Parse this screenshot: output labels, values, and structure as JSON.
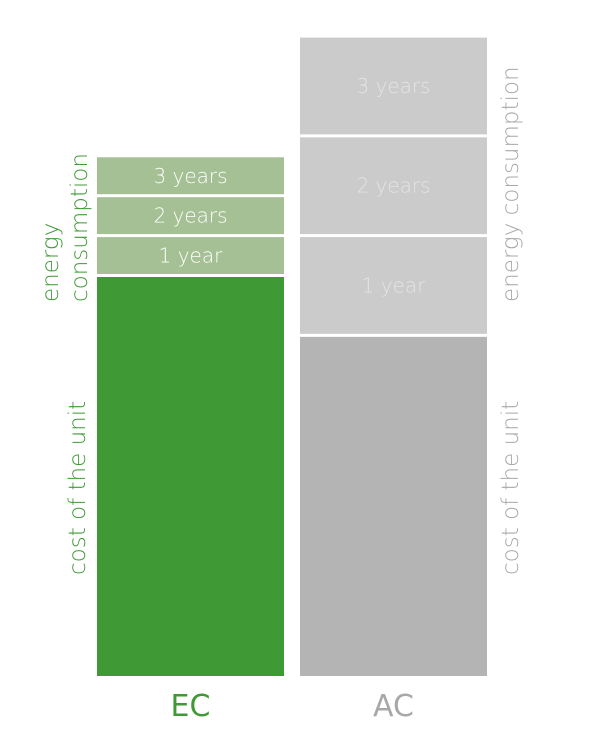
{
  "chart_data": {
    "type": "bar",
    "stacked": true,
    "title": "",
    "xlabel": "",
    "ylabel": "",
    "grid": false,
    "ylim": [
      0,
      16
    ],
    "categories": [
      "EC",
      "AC"
    ],
    "series": [
      {
        "key": "unit",
        "values": [
          10,
          8.5
        ]
      },
      {
        "key": "y1",
        "label": "1 year",
        "values": [
          1,
          2.5
        ]
      },
      {
        "key": "y2",
        "label": "2 years",
        "values": [
          1,
          2.5
        ]
      },
      {
        "key": "y3",
        "label": "3 years",
        "values": [
          1,
          2.5
        ]
      }
    ],
    "annotations": {
      "EC": {
        "energy_label_line1": "energy",
        "energy_label_line2": "consumption",
        "unit_label": "cost of the unit"
      },
      "AC": {
        "energy_label": "energy consumption",
        "unit_label": "cost of the unit"
      }
    },
    "colors": {
      "EC": {
        "unit": "#3f9a35",
        "energy": "#a4c094",
        "text": "#3f9a35",
        "segment_text": "#ffffff"
      },
      "AC": {
        "unit": "#b4b4b4",
        "energy": "#cbcbcb",
        "text": "#a8a8a8",
        "segment_text": "#e4e4e4"
      }
    }
  }
}
